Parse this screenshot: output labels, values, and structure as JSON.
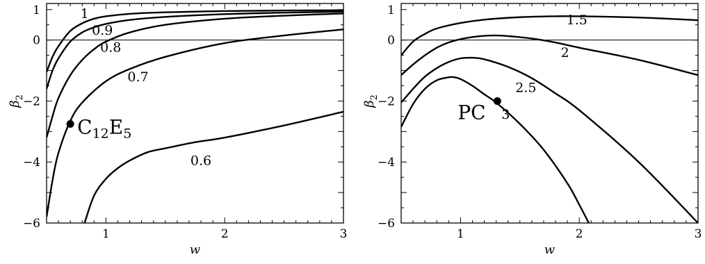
{
  "chart_data": [
    {
      "type": "line",
      "xlabel": "w",
      "ylabel_main": "β",
      "ylabel_sub": "2",
      "xlim": [
        0.5,
        3
      ],
      "ylim": [
        -6,
        1.2
      ],
      "xticks": [
        "1",
        "2",
        "3"
      ],
      "yticks": [
        "1",
        "0",
        "−2",
        "−4",
        "−6"
      ],
      "zero_line": true,
      "series": [
        {
          "name": "1",
          "x": [
            0.5,
            0.55,
            0.6,
            0.7,
            0.8,
            0.9,
            1.0,
            1.2,
            1.5,
            2.0,
            2.5,
            3.0
          ],
          "values": [
            -1.05,
            -0.55,
            -0.2,
            0.3,
            0.55,
            0.7,
            0.78,
            0.86,
            0.91,
            0.95,
            0.97,
            0.98
          ]
        },
        {
          "name": "0.9",
          "x": [
            0.5,
            0.55,
            0.6,
            0.7,
            0.8,
            0.9,
            1.0,
            1.2,
            1.5,
            2.0,
            2.5,
            3.0
          ],
          "values": [
            -1.6,
            -1.0,
            -0.6,
            -0.05,
            0.25,
            0.42,
            0.53,
            0.66,
            0.76,
            0.85,
            0.9,
            0.93
          ]
        },
        {
          "name": "0.8",
          "x": [
            0.5,
            0.55,
            0.6,
            0.7,
            0.8,
            0.9,
            1.0,
            1.2,
            1.5,
            2.0,
            2.5,
            3.0
          ],
          "values": [
            -3.2,
            -2.5,
            -1.9,
            -1.15,
            -0.65,
            -0.3,
            -0.05,
            0.25,
            0.5,
            0.7,
            0.8,
            0.87
          ]
        },
        {
          "name": "0.7",
          "x": [
            0.5,
            0.55,
            0.6,
            0.7,
            0.8,
            1.0,
            1.2,
            1.5,
            2.0,
            2.5,
            3.0
          ],
          "values": [
            -5.8,
            -4.6,
            -3.7,
            -2.65,
            -2.05,
            -1.35,
            -0.95,
            -0.55,
            -0.1,
            0.15,
            0.35
          ]
        },
        {
          "name": "0.6",
          "x": [
            0.82,
            0.9,
            1.0,
            1.1,
            1.2,
            1.35,
            1.5,
            1.75,
            2.0,
            2.5,
            3.0
          ],
          "values": [
            -6.0,
            -5.1,
            -4.55,
            -4.2,
            -3.95,
            -3.68,
            -3.55,
            -3.35,
            -3.2,
            -2.8,
            -2.35
          ]
        }
      ],
      "curve_labels": [
        {
          "text": "1",
          "x": 0.82,
          "y": 0.72
        },
        {
          "text": "0.9",
          "x": 0.97,
          "y": 0.18
        },
        {
          "text": "0.8",
          "x": 1.04,
          "y": -0.38
        },
        {
          "text": "0.7",
          "x": 1.27,
          "y": -1.35
        },
        {
          "text": "0.6",
          "x": 1.8,
          "y": -4.1
        }
      ],
      "marker": {
        "x": 0.7,
        "y": -2.75,
        "label": "C",
        "label_sub": "12",
        "label_main2": "E",
        "label_sub2": "5"
      }
    },
    {
      "type": "line",
      "xlabel": "w",
      "ylabel_main": "β",
      "ylabel_sub": "2",
      "xlim": [
        0.5,
        3
      ],
      "ylim": [
        -6,
        1.2
      ],
      "xticks": [
        "1",
        "2",
        "3"
      ],
      "yticks": [
        "1",
        "0",
        "−2",
        "−4",
        "−6"
      ],
      "zero_line": true,
      "series": [
        {
          "name": "1.5",
          "x": [
            0.5,
            0.6,
            0.7,
            0.8,
            1.0,
            1.2,
            1.5,
            1.8,
            2.0,
            2.5,
            3.0
          ],
          "values": [
            -0.5,
            -0.05,
            0.2,
            0.38,
            0.56,
            0.67,
            0.75,
            0.78,
            0.78,
            0.74,
            0.65
          ]
        },
        {
          "name": "2",
          "x": [
            0.5,
            0.6,
            0.7,
            0.8,
            0.9,
            1.0,
            1.1,
            1.2,
            1.3,
            1.4,
            1.6,
            1.8,
            2.0,
            2.5,
            3.0
          ],
          "values": [
            -1.15,
            -0.8,
            -0.5,
            -0.25,
            -0.08,
            0.03,
            0.1,
            0.14,
            0.15,
            0.13,
            0.05,
            -0.08,
            -0.25,
            -0.65,
            -1.15
          ]
        },
        {
          "name": "2.5",
          "x": [
            0.5,
            0.6,
            0.7,
            0.8,
            0.9,
            1.0,
            1.1,
            1.2,
            1.4,
            1.6,
            1.8,
            2.0,
            2.5,
            3.0
          ],
          "values": [
            -2.05,
            -1.6,
            -1.2,
            -0.92,
            -0.72,
            -0.6,
            -0.58,
            -0.63,
            -0.88,
            -1.25,
            -1.75,
            -2.3,
            -4.0,
            -6.0
          ]
        },
        {
          "name": "3",
          "x": [
            0.5,
            0.6,
            0.7,
            0.8,
            0.9,
            0.95,
            1.0,
            1.1,
            1.2,
            1.3,
            1.5,
            1.7,
            1.9,
            2.0,
            2.08
          ],
          "values": [
            -2.85,
            -2.1,
            -1.6,
            -1.32,
            -1.22,
            -1.22,
            -1.28,
            -1.5,
            -1.78,
            -2.05,
            -2.75,
            -3.6,
            -4.7,
            -5.4,
            -6.0
          ]
        }
      ],
      "curve_labels": [
        {
          "text": "1.5",
          "x": 1.98,
          "y": 0.52
        },
        {
          "text": "2",
          "x": 1.88,
          "y": -0.55
        },
        {
          "text": "2.5",
          "x": 1.55,
          "y": -1.7
        },
        {
          "text": "3",
          "x": 1.38,
          "y": -2.58
        }
      ],
      "marker": {
        "x": 1.31,
        "y": -2.0,
        "label": "PC",
        "label_sub": "",
        "label_main2": "",
        "label_sub2": ""
      }
    }
  ]
}
